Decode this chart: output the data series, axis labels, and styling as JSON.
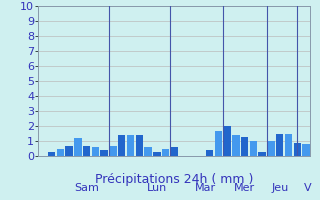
{
  "xlabel": "Précipitations 24h ( mm )",
  "ylim": [
    0,
    10
  ],
  "yticks": [
    0,
    1,
    2,
    3,
    4,
    5,
    6,
    7,
    8,
    9,
    10
  ],
  "background_color": "#cff0f0",
  "bar_color_main": "#2266cc",
  "bar_color_alt": "#4499ee",
  "grid_color": "#bbbbbb",
  "day_labels": [
    "Sam",
    "Lun",
    "Mar",
    "Mer",
    "Jeu",
    "V"
  ],
  "bars": [
    0.0,
    0.3,
    0.5,
    0.7,
    1.2,
    0.7,
    0.6,
    0.4,
    0.7,
    1.4,
    1.4,
    1.4,
    0.6,
    0.3,
    0.5,
    0.6,
    0.0,
    0.0,
    0.0,
    0.4,
    1.7,
    2.0,
    1.4,
    1.3,
    1.0,
    0.3,
    1.0,
    1.5,
    1.5,
    0.9,
    0.8
  ],
  "bar_colors": [
    "#4499ee",
    "#2266cc",
    "#4499ee",
    "#2266cc",
    "#4499ee",
    "#2266cc",
    "#4499ee",
    "#2266cc",
    "#4499ee",
    "#2266cc",
    "#4499ee",
    "#2266cc",
    "#4499ee",
    "#2266cc",
    "#4499ee",
    "#2266cc",
    "#4499ee",
    "#2266cc",
    "#4499ee",
    "#2266cc",
    "#4499ee",
    "#2266cc",
    "#4499ee",
    "#2266cc",
    "#4499ee",
    "#2266cc",
    "#4499ee",
    "#2266cc",
    "#4499ee",
    "#2266cc",
    "#4499ee"
  ],
  "xlabel_color": "#3333bb",
  "xlabel_fontsize": 9,
  "tick_color": "#3333bb",
  "tick_fontsize": 8,
  "sep_color": "#4455aa",
  "sep_linewidth": 0.8
}
